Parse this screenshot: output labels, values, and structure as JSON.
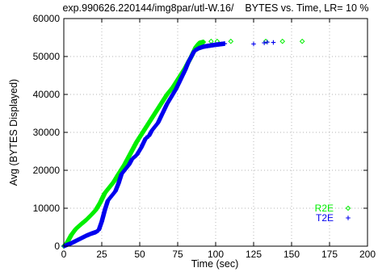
{
  "chart_data": {
    "type": "scatter",
    "title": "exp.990626.220144/img8par/utl-W.16/    BYTES vs. Time, LR= 10 %",
    "xlabel": "Time (sec)",
    "ylabel": "Avg (BYTES Displayed)",
    "xlim": [
      0,
      200
    ],
    "ylim": [
      0,
      60000
    ],
    "x_ticks": [
      "0",
      "25",
      "50",
      "75",
      "100",
      "125",
      "150",
      "175",
      "200"
    ],
    "y_ticks": [
      "0",
      "10000",
      "20000",
      "30000",
      "40000",
      "50000",
      "60000"
    ],
    "grid": true,
    "legend_position": "bottom-right",
    "series": [
      {
        "name": "R2E",
        "color": "#00ee00",
        "marker": "diamond",
        "trend": [
          [
            0,
            0
          ],
          [
            2,
            800
          ],
          [
            5,
            3000
          ],
          [
            8,
            4600
          ],
          [
            12,
            6000
          ],
          [
            15,
            7000
          ],
          [
            18,
            8200
          ],
          [
            21,
            9500
          ],
          [
            24,
            11500
          ],
          [
            27,
            14000
          ],
          [
            30,
            15500
          ],
          [
            33,
            17000
          ],
          [
            36,
            19000
          ],
          [
            40,
            21500
          ],
          [
            44,
            24500
          ],
          [
            48,
            27500
          ],
          [
            52,
            30000
          ],
          [
            56,
            32500
          ],
          [
            60,
            35000
          ],
          [
            64,
            37500
          ],
          [
            68,
            40000
          ],
          [
            72,
            42000
          ],
          [
            76,
            44500
          ],
          [
            80,
            47000
          ],
          [
            84,
            50000
          ],
          [
            87,
            52500
          ],
          [
            89,
            53500
          ],
          [
            92,
            53800
          ]
        ],
        "outliers": [
          [
            97,
            54000
          ],
          [
            101,
            54000
          ],
          [
            110,
            54000
          ],
          [
            133,
            54000
          ],
          [
            144,
            54000
          ],
          [
            157,
            54000
          ]
        ]
      },
      {
        "name": "T2E",
        "color": "#0000ee",
        "marker": "plus",
        "trend": [
          [
            0,
            0
          ],
          [
            5,
            800
          ],
          [
            10,
            1800
          ],
          [
            15,
            2800
          ],
          [
            18,
            3300
          ],
          [
            21,
            3700
          ],
          [
            23,
            4200
          ],
          [
            25,
            6500
          ],
          [
            27,
            9500
          ],
          [
            29,
            12000
          ],
          [
            31,
            13000
          ],
          [
            34,
            14500
          ],
          [
            36,
            16500
          ],
          [
            38,
            19000
          ],
          [
            40,
            20000
          ],
          [
            43,
            21500
          ],
          [
            45,
            23000
          ],
          [
            48,
            24000
          ],
          [
            51,
            26000
          ],
          [
            54,
            28500
          ],
          [
            56,
            29000
          ],
          [
            58,
            30500
          ],
          [
            62,
            32500
          ],
          [
            65,
            35000
          ],
          [
            68,
            37500
          ],
          [
            71,
            39500
          ],
          [
            74,
            41500
          ],
          [
            77,
            44000
          ],
          [
            80,
            46500
          ],
          [
            82,
            48500
          ],
          [
            84,
            50000
          ],
          [
            86,
            51500
          ],
          [
            89,
            52200
          ],
          [
            92,
            52600
          ],
          [
            95,
            52800
          ],
          [
            100,
            53100
          ],
          [
            106,
            53400
          ]
        ],
        "outliers": [
          [
            125,
            53300
          ],
          [
            132,
            53600
          ],
          [
            134,
            53800
          ],
          [
            138,
            53700
          ]
        ]
      }
    ]
  }
}
